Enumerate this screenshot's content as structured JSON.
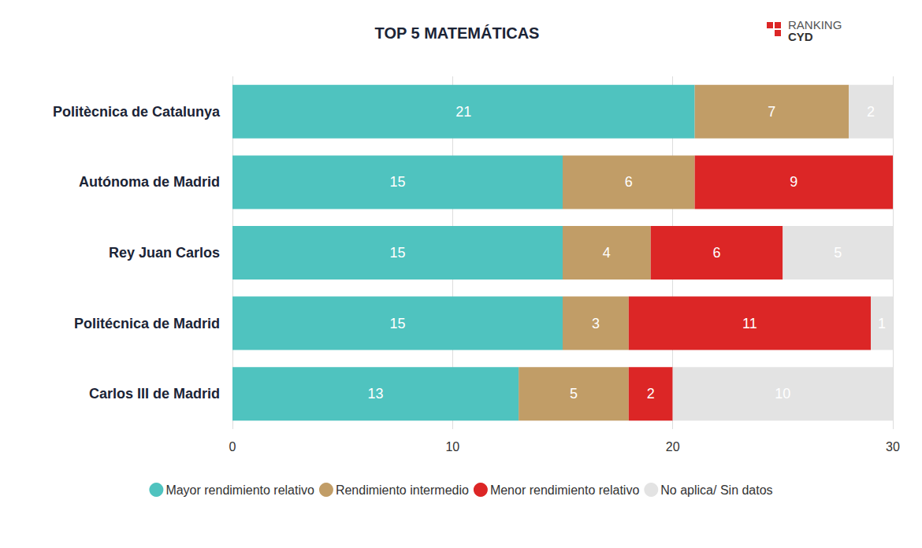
{
  "chart_data": {
    "type": "bar",
    "title": "TOP 5 MATEMÁTICAS",
    "annotations": [
      "RANKING",
      "CYD"
    ],
    "orientation": "horizontal",
    "stacked": true,
    "data_labels": true,
    "grid": true,
    "legend": "bottom",
    "categories": [
      "Politècnica de Catalunya",
      "Autónoma de Madrid",
      "Rey Juan Carlos",
      "Politécnica de Madrid",
      "Carlos III de Madrid"
    ],
    "series": [
      {
        "name": "Mayor rendimiento relativo",
        "color": "#4fc3bf",
        "values": [
          21,
          15,
          15,
          15,
          13
        ]
      },
      {
        "name": "Rendimiento intermedio",
        "color": "#c19d67",
        "values": [
          7,
          6,
          4,
          3,
          5
        ]
      },
      {
        "name": "Menor rendimiento relativo",
        "color": "#dc2626",
        "values": [
          null,
          9,
          6,
          11,
          2
        ]
      },
      {
        "name": "No aplica/ Sin datos",
        "color": "#e3e3e3",
        "values": [
          2,
          null,
          5,
          1,
          10
        ]
      }
    ],
    "xlim": [
      0,
      30
    ],
    "xticks": [
      0,
      10,
      20,
      30
    ]
  }
}
